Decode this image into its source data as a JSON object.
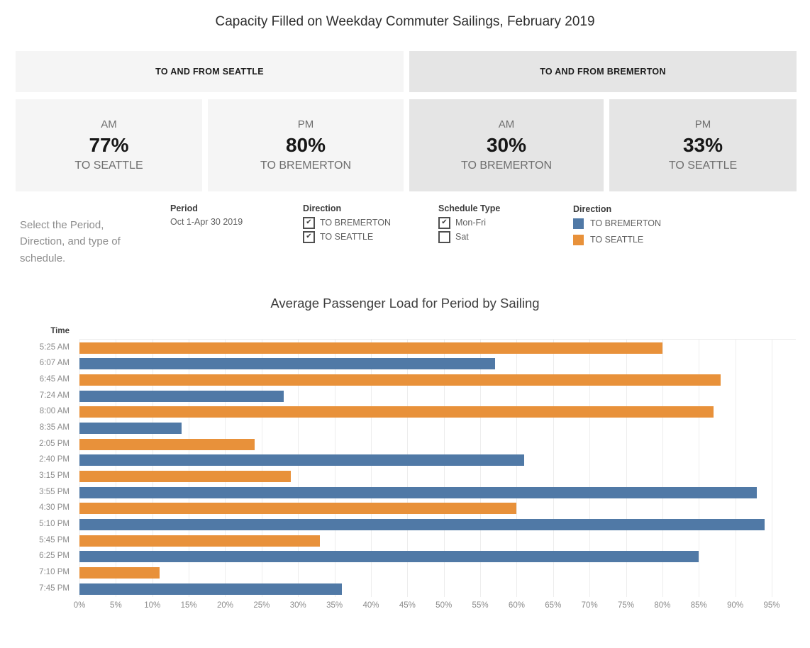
{
  "title": "Capacity Filled on Weekday Commuter Sailings, February 2019",
  "sections": [
    {
      "label": "TO AND FROM SEATTLE"
    },
    {
      "label": "TO AND FROM BREMERTON"
    }
  ],
  "cards": [
    {
      "period": "AM",
      "value": "77%",
      "direction": "TO SEATTLE"
    },
    {
      "period": "PM",
      "value": "80%",
      "direction": "TO BREMERTON"
    },
    {
      "period": "AM",
      "value": "30%",
      "direction": "TO BREMERTON"
    },
    {
      "period": "PM",
      "value": "33%",
      "direction": "TO SEATTLE"
    }
  ],
  "instructions": "Select the Period, Direction, and type of schedule.",
  "filters": {
    "period": {
      "label": "Period",
      "value": "Oct 1-Apr 30 2019"
    },
    "direction": {
      "label": "Direction",
      "options": [
        {
          "label": "TO BREMERTON",
          "checked": true
        },
        {
          "label": "TO SEATTLE",
          "checked": true
        }
      ]
    },
    "schedule_type": {
      "label": "Schedule Type",
      "options": [
        {
          "label": "Mon-Fri",
          "checked": true
        },
        {
          "label": "Sat",
          "checked": false
        }
      ]
    }
  },
  "legend": {
    "label": "Direction",
    "items": [
      {
        "label": "TO BREMERTON",
        "color": "#5079a6"
      },
      {
        "label": "TO SEATTLE",
        "color": "#e8913a"
      }
    ]
  },
  "chart_data": {
    "type": "bar",
    "orientation": "horizontal",
    "title": "Average Passenger Load for Period by Sailing",
    "y_axis_header": "Time",
    "xlabel": "",
    "ylabel": "Time",
    "xlim_pct": [
      0,
      98
    ],
    "grid": true,
    "legend_position": "above-right",
    "x_tick_labels": [
      "0%",
      "5%",
      "10%",
      "15%",
      "20%",
      "25%",
      "30%",
      "35%",
      "40%",
      "45%",
      "50%",
      "55%",
      "60%",
      "65%",
      "70%",
      "75%",
      "80%",
      "85%",
      "90%",
      "95%"
    ],
    "rows": [
      {
        "time": "5:25 AM",
        "direction": "TO SEATTLE",
        "value": 80
      },
      {
        "time": "6:07 AM",
        "direction": "TO BREMERTON",
        "value": 57
      },
      {
        "time": "6:45 AM",
        "direction": "TO SEATTLE",
        "value": 88
      },
      {
        "time": "7:24 AM",
        "direction": "TO BREMERTON",
        "value": 28
      },
      {
        "time": "8:00 AM",
        "direction": "TO SEATTLE",
        "value": 87
      },
      {
        "time": "8:35 AM",
        "direction": "TO BREMERTON",
        "value": 14
      },
      {
        "time": "2:05 PM",
        "direction": "TO SEATTLE",
        "value": 24
      },
      {
        "time": "2:40 PM",
        "direction": "TO BREMERTON",
        "value": 61
      },
      {
        "time": "3:15 PM",
        "direction": "TO SEATTLE",
        "value": 29
      },
      {
        "time": "3:55 PM",
        "direction": "TO BREMERTON",
        "value": 93
      },
      {
        "time": "4:30 PM",
        "direction": "TO SEATTLE",
        "value": 60
      },
      {
        "time": "5:10 PM",
        "direction": "TO BREMERTON",
        "value": 94
      },
      {
        "time": "5:45 PM",
        "direction": "TO SEATTLE",
        "value": 33
      },
      {
        "time": "6:25 PM",
        "direction": "TO BREMERTON",
        "value": 85
      },
      {
        "time": "7:10 PM",
        "direction": "TO SEATTLE",
        "value": 11
      },
      {
        "time": "7:45 PM",
        "direction": "TO BREMERTON",
        "value": 36
      }
    ]
  }
}
